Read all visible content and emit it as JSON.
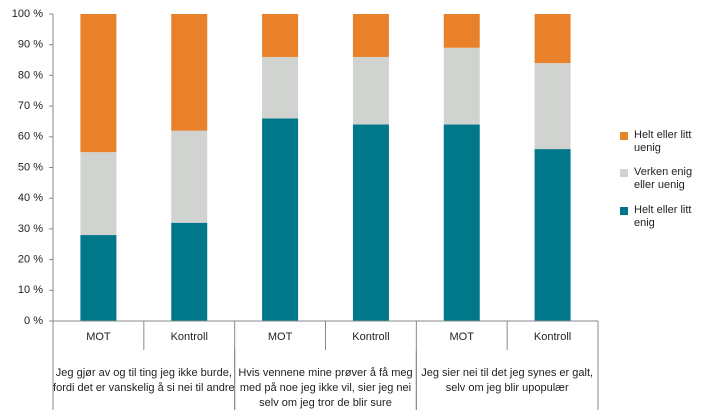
{
  "chart_data": {
    "type": "stacked_bar",
    "categories": [
      "MOT",
      "Kontroll",
      "MOT",
      "Kontroll",
      "MOT",
      "Kontroll"
    ],
    "groups": [
      {
        "lines": [
          "Jeg gjør av og til ting jeg ikke burde,",
          "fordi det er vanskelig å si nei til andre"
        ],
        "span": 2
      },
      {
        "lines": [
          "Hvis vennene mine prøver å få meg",
          "med på noe jeg ikke vil, sier jeg nei",
          "selv om jeg tror de blir sure"
        ],
        "span": 2
      },
      {
        "lines": [
          "Jeg sier nei til det jeg synes er galt,",
          "selv om jeg blir upopulær"
        ],
        "span": 2
      }
    ],
    "series": [
      {
        "name": "Helt eller litt enig",
        "color": "#00788a",
        "values": [
          28,
          32,
          66,
          64,
          64,
          56
        ]
      },
      {
        "name": "Verken enig eller uenig",
        "color": "#d0d3d0",
        "values": [
          27,
          30,
          20,
          22,
          25,
          28
        ]
      },
      {
        "name": "Helt eller litt uenig",
        "color": "#e8812a",
        "values": [
          45,
          38,
          14,
          14,
          11,
          16
        ]
      }
    ],
    "ylim": [
      0,
      100
    ],
    "yticks": [
      {
        "value": 0,
        "label": "0 %"
      },
      {
        "value": 10,
        "label": "10 %"
      },
      {
        "value": 20,
        "label": "20 %"
      },
      {
        "value": 30,
        "label": "30 %"
      },
      {
        "value": 40,
        "label": "40 %"
      },
      {
        "value": 50,
        "label": "50 %"
      },
      {
        "value": 60,
        "label": "60 %"
      },
      {
        "value": 70,
        "label": "70 %"
      },
      {
        "value": 80,
        "label": "80 %"
      },
      {
        "value": 90,
        "label": "90 %"
      },
      {
        "value": 100,
        "label": "100 %"
      }
    ],
    "legend": "right"
  }
}
